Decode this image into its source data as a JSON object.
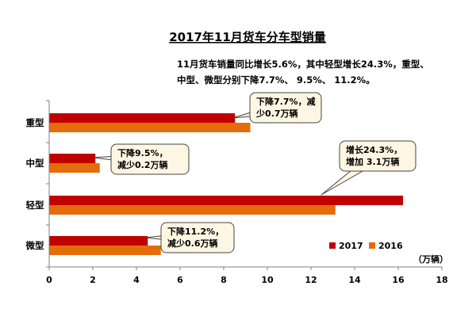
{
  "chart_data": {
    "type": "bar",
    "orientation": "horizontal",
    "title": "2017年11月货车分车型销量",
    "subtitle_lines": [
      "11月货车销量同比增长5.6%，其中轻型增长24.3%，重型、",
      "中型、微型分别下降7.7%、 9.5%、 11.2%。"
    ],
    "categories": [
      "重型",
      "中型",
      "轻型",
      "微型"
    ],
    "series": [
      {
        "name": "2017",
        "color": "#c00000",
        "values": [
          8.5,
          2.1,
          16.2,
          4.5
        ]
      },
      {
        "name": "2016",
        "color": "#e46c0a",
        "values": [
          9.2,
          2.3,
          13.1,
          5.1
        ]
      }
    ],
    "xlim": [
      0,
      18
    ],
    "xticks": [
      0,
      2,
      4,
      6,
      8,
      10,
      12,
      14,
      16,
      18
    ],
    "unit_label": "（万辆）",
    "legend_position": "bottom-right",
    "grid": false,
    "annotations": [
      {
        "category": "重型",
        "lines": [
          "下降7.7%，减",
          "少0.7万辆"
        ]
      },
      {
        "category": "中型",
        "lines": [
          "下降9.5%，",
          "减少0.2万辆"
        ]
      },
      {
        "category": "轻型",
        "lines": [
          "增长24.3%，",
          "增加 3.1万辆"
        ]
      },
      {
        "category": "微型",
        "lines": [
          "下降11.2%，",
          "减少0.6万辆"
        ]
      }
    ]
  }
}
